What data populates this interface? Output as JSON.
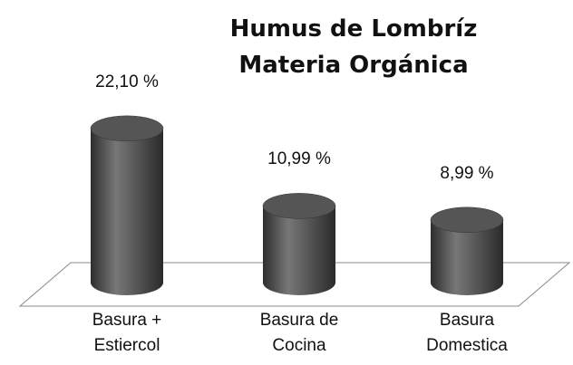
{
  "chart_data": {
    "type": "bar",
    "title": "Humus de Lombríz Materia Orgánica",
    "categories": [
      "Basura + Estiercol",
      "Basura de Cocina",
      "Basura Domestica"
    ],
    "values": [
      22.1,
      10.99,
      8.99
    ],
    "value_labels": [
      "22,10 %",
      "10,99 %",
      "8,99 %"
    ],
    "color": "#555555"
  }
}
